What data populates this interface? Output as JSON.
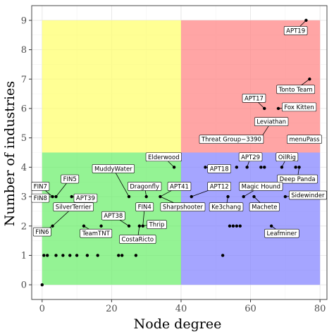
{
  "chart_data": {
    "type": "scatter",
    "title": "",
    "xlabel": "Node degree",
    "ylabel": "Number of industries",
    "xlim": [
      -3,
      82
    ],
    "ylim": [
      -0.5,
      9.5
    ],
    "xticks": [
      0,
      20,
      40,
      60,
      80
    ],
    "yticks": [
      0,
      1,
      2,
      3,
      4,
      5,
      6,
      7,
      8,
      9
    ],
    "grid": true,
    "legend": "none",
    "quadrants": [
      {
        "x": [
          0,
          40
        ],
        "y": [
          4.5,
          9
        ],
        "color": "#ffff66"
      },
      {
        "x": [
          40,
          80
        ],
        "y": [
          4.5,
          9
        ],
        "color": "#ff7f7f"
      },
      {
        "x": [
          0,
          40
        ],
        "y": [
          0,
          4.5
        ],
        "color": "#66ee66"
      },
      {
        "x": [
          40,
          80
        ],
        "y": [
          0,
          4.5
        ],
        "color": "#7f7fff"
      }
    ],
    "points": [
      {
        "x": 0,
        "y": 0
      },
      {
        "x": 0.5,
        "y": 1
      },
      {
        "x": 1.5,
        "y": 1
      },
      {
        "x": 3,
        "y": 2
      },
      {
        "x": 3,
        "y": 3
      },
      {
        "x": 4,
        "y": 3
      },
      {
        "x": 4,
        "y": 1
      },
      {
        "x": 6,
        "y": 1
      },
      {
        "x": 8,
        "y": 1
      },
      {
        "x": 8.5,
        "y": 3
      },
      {
        "x": 10,
        "y": 1
      },
      {
        "x": 12,
        "y": 2
      },
      {
        "x": 13,
        "y": 1
      },
      {
        "x": 16,
        "y": 1
      },
      {
        "x": 17,
        "y": 2
      },
      {
        "x": 22,
        "y": 1
      },
      {
        "x": 23,
        "y": 1
      },
      {
        "x": 25,
        "y": 2
      },
      {
        "x": 25,
        "y": 3
      },
      {
        "x": 27,
        "y": 1
      },
      {
        "x": 28,
        "y": 2
      },
      {
        "x": 29,
        "y": 2
      },
      {
        "x": 30,
        "y": 3
      },
      {
        "x": 34,
        "y": 3
      },
      {
        "x": 38,
        "y": 4
      },
      {
        "x": 43,
        "y": 3
      },
      {
        "x": 47,
        "y": 4
      },
      {
        "x": 52,
        "y": 1
      },
      {
        "x": 53.5,
        "y": 3
      },
      {
        "x": 54,
        "y": 2
      },
      {
        "x": 55,
        "y": 2
      },
      {
        "x": 56,
        "y": 2
      },
      {
        "x": 57,
        "y": 2
      },
      {
        "x": 56,
        "y": 4
      },
      {
        "x": 58,
        "y": 3
      },
      {
        "x": 59,
        "y": 4
      },
      {
        "x": 61,
        "y": 3
      },
      {
        "x": 63,
        "y": 4
      },
      {
        "x": 64,
        "y": 4
      },
      {
        "x": 66,
        "y": 2
      },
      {
        "x": 69,
        "y": 4
      },
      {
        "x": 70,
        "y": 3
      },
      {
        "x": 73,
        "y": 4
      },
      {
        "x": 74,
        "y": 4
      },
      {
        "x": 63,
        "y": 5
      },
      {
        "x": 64,
        "y": 6
      },
      {
        "x": 68,
        "y": 6
      },
      {
        "x": 76,
        "y": 9
      },
      {
        "x": 77,
        "y": 7
      },
      {
        "x": 77,
        "y": 5
      }
    ],
    "annotations": [
      {
        "text": "APT19",
        "x": 76,
        "y": 9,
        "lx": 73,
        "ly": 8.65
      },
      {
        "text": "Tonto Team",
        "x": 77,
        "y": 7,
        "lx": 73,
        "ly": 6.65
      },
      {
        "text": "APT17",
        "x": 64,
        "y": 6,
        "lx": 61,
        "ly": 6.35
      },
      {
        "text": "Fox Kitten",
        "x": 68,
        "y": 6,
        "lx": 74,
        "ly": 6.05
      },
      {
        "text": "Leviathan",
        "x": 63,
        "y": 5,
        "lx": 66,
        "ly": 5.55
      },
      {
        "text": "Threat Group−3390",
        "x": 63,
        "y": 5,
        "lx": 54.5,
        "ly": 4.95
      },
      {
        "text": "menuPass",
        "x": 77,
        "y": 5,
        "lx": 75.5,
        "ly": 4.95
      },
      {
        "text": "Elderwood",
        "x": 38,
        "y": 4,
        "lx": 35,
        "ly": 4.35
      },
      {
        "text": "APT29",
        "x": 59,
        "y": 4,
        "lx": 60,
        "ly": 4.35
      },
      {
        "text": "OilRig",
        "x": 69,
        "y": 4,
        "lx": 70.5,
        "ly": 4.35
      },
      {
        "text": "APT18",
        "x": 47,
        "y": 4,
        "lx": 51,
        "ly": 3.95
      },
      {
        "text": "MuddyWater",
        "x": 25,
        "y": 3,
        "lx": 20.5,
        "ly": 3.95
      },
      {
        "text": "Deep Panda",
        "x": 74,
        "y": 4,
        "lx": 73.5,
        "ly": 3.6
      },
      {
        "text": "FIN5",
        "x": 4,
        "y": 3,
        "lx": 8,
        "ly": 3.6
      },
      {
        "text": "FIN7",
        "x": 3,
        "y": 3,
        "lx": -0.5,
        "ly": 3.35
      },
      {
        "text": "APT41",
        "x": 34,
        "y": 3,
        "lx": 39.5,
        "ly": 3.35
      },
      {
        "text": "APT12",
        "x": 43,
        "y": 3,
        "lx": 51,
        "ly": 3.35
      },
      {
        "text": "Magic Hound",
        "x": 58,
        "y": 3,
        "lx": 63,
        "ly": 3.35
      },
      {
        "text": "Dragonfly",
        "x": 30,
        "y": 3,
        "lx": 29.5,
        "ly": 3.35
      },
      {
        "text": "APT39",
        "x": 8.5,
        "y": 3,
        "lx": 12.5,
        "ly": 2.95
      },
      {
        "text": "Sidewinder",
        "x": 70,
        "y": 3,
        "lx": 76.5,
        "ly": 3.05
      },
      {
        "text": "FIN8",
        "x": 3,
        "y": 3,
        "lx": -0.5,
        "ly": 2.95
      },
      {
        "text": "Ke3chang",
        "x": 53.5,
        "y": 3,
        "lx": 53,
        "ly": 2.65
      },
      {
        "text": "Machete",
        "x": 61,
        "y": 3,
        "lx": 64,
        "ly": 2.65
      },
      {
        "text": "SilverTerrier",
        "x": 3,
        "y": 2,
        "lx": 9,
        "ly": 2.65
      },
      {
        "text": "Sharpshooter",
        "x": 34,
        "y": 3,
        "lx": 40.5,
        "ly": 2.65
      },
      {
        "text": "FIN4",
        "x": 29,
        "y": 2,
        "lx": 29.5,
        "ly": 2.65
      },
      {
        "text": "APT38",
        "x": 25,
        "y": 2,
        "lx": 20.5,
        "ly": 2.35
      },
      {
        "text": "Thrip",
        "x": 28,
        "y": 2,
        "lx": 33,
        "ly": 2.05
      },
      {
        "text": "FIN6",
        "x": 3,
        "y": 2,
        "lx": 0,
        "ly": 1.8
      },
      {
        "text": "TeamTNT",
        "x": 12,
        "y": 2,
        "lx": 15.5,
        "ly": 1.75
      },
      {
        "text": "Leafminer",
        "x": 66,
        "y": 2,
        "lx": 69,
        "ly": 1.75
      },
      {
        "text": "CostaRicto",
        "x": 28,
        "y": 2,
        "lx": 27.5,
        "ly": 1.55
      }
    ]
  }
}
